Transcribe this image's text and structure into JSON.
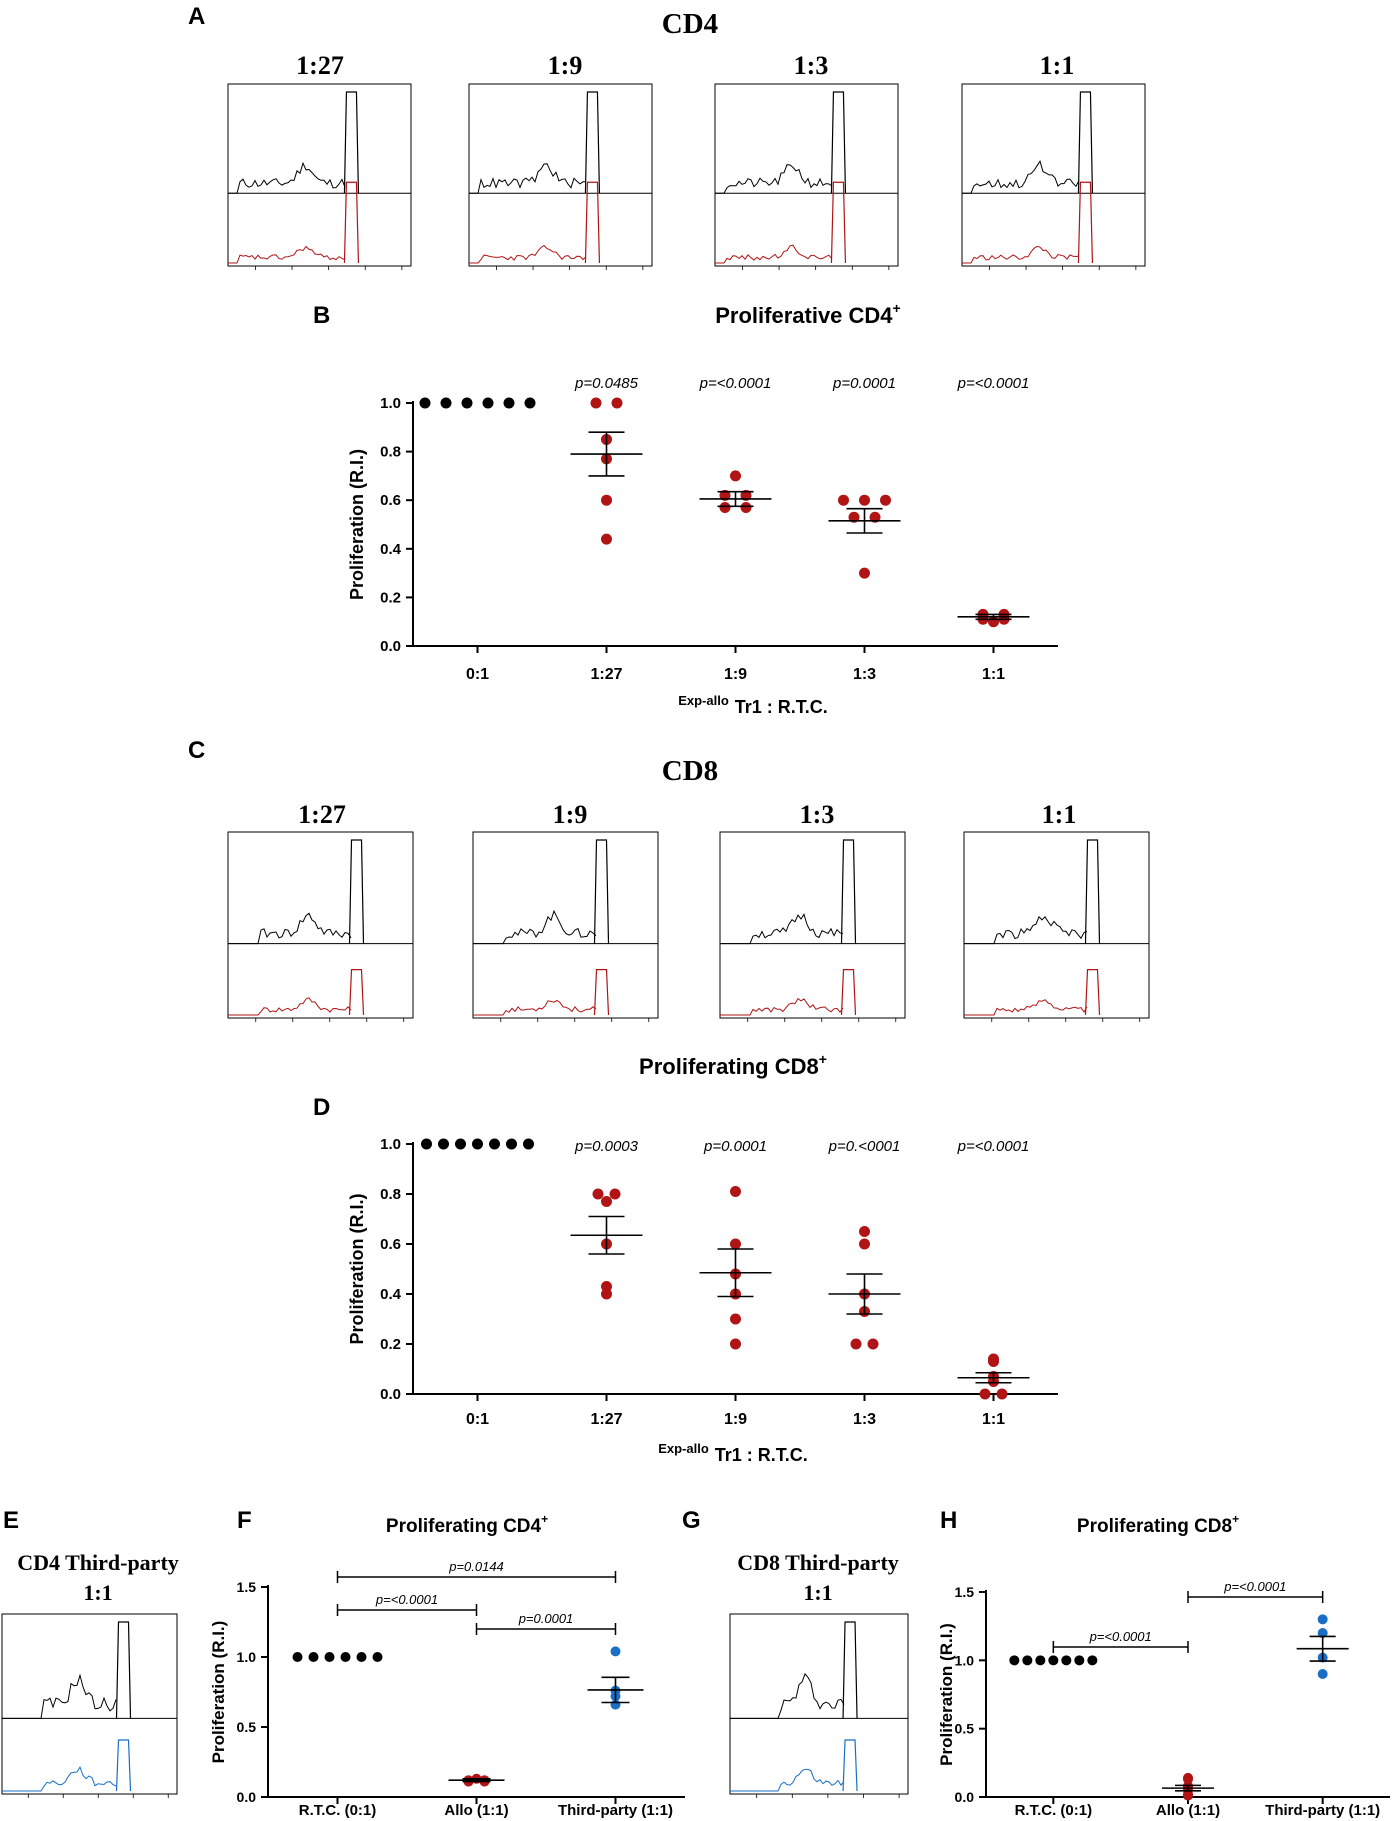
{
  "colors": {
    "control": "#000000",
    "allo": "#b01414",
    "third": "#1a6fc4",
    "trace_black": "#000000"
  },
  "panelA": {
    "letter": "A",
    "title": "CD4",
    "labels": [
      "1:27",
      "1:9",
      "1:3",
      "1:1"
    ]
  },
  "panelB": {
    "letter": "B",
    "title": "Proliferative CD4",
    "title_sup": "+",
    "xlabel_sup": "Exp-allo",
    "xlabel": "Tr1 : R.T.C."
  },
  "panelC": {
    "letter": "C",
    "title": "CD8",
    "labels": [
      "1:27",
      "1:9",
      "1:3",
      "1:1"
    ]
  },
  "panelD": {
    "letter": "D",
    "title": "Proliferating CD8",
    "title_sup": "+",
    "xlabel_sup": "Exp-allo",
    "xlabel": "Tr1 : R.T.C."
  },
  "panelE": {
    "letter": "E",
    "title_line1": "CD4 Third-party",
    "title_line2": "1:1"
  },
  "panelF": {
    "letter": "F",
    "title": "Proliferating CD4",
    "title_sup": "+"
  },
  "panelG": {
    "letter": "G",
    "title_line1": "CD8 Third-party",
    "title_line2": "1:1"
  },
  "panelH": {
    "letter": "H",
    "title": "Proliferating CD8",
    "title_sup": "+"
  },
  "chart_data": [
    {
      "id": "B",
      "type": "scatter",
      "title": "Proliferative CD4+",
      "ylabel": "Proliferation (R.I.)",
      "xlabel": "Exp-allo Tr1 : R.T.C.",
      "ylim": [
        0,
        1.0
      ],
      "yticks": [
        0.0,
        0.2,
        0.4,
        0.6,
        0.8,
        1.0
      ],
      "ytick_labels": [
        "0.0",
        "0.2",
        "0.4",
        "0.6",
        "0.8",
        "1.0"
      ],
      "categories": [
        "0:1",
        "1:27",
        "1:9",
        "1:3",
        "1:1"
      ],
      "pvalues": [
        "",
        "p=0.0485",
        "p=<0.0001",
        "p=0.0001",
        "p=<0.0001"
      ],
      "groups": [
        {
          "name": "0:1",
          "color": "control",
          "mean": null,
          "sem": null,
          "points": [
            1.0,
            1.0,
            1.0,
            1.0,
            1.0,
            1.0
          ]
        },
        {
          "name": "1:27",
          "color": "allo",
          "mean": 0.79,
          "sem": 0.09,
          "points": [
            1.0,
            1.0,
            0.85,
            0.77,
            0.6,
            0.44
          ]
        },
        {
          "name": "1:9",
          "color": "allo",
          "mean": 0.605,
          "sem": 0.03,
          "points": [
            0.7,
            0.62,
            0.62,
            0.57,
            0.57
          ]
        },
        {
          "name": "1:3",
          "color": "allo",
          "mean": 0.515,
          "sem": 0.05,
          "points": [
            0.6,
            0.6,
            0.6,
            0.53,
            0.53,
            0.3
          ]
        },
        {
          "name": "1:1",
          "color": "allo",
          "mean": 0.12,
          "sem": 0.01,
          "points": [
            0.13,
            0.13,
            0.11,
            0.11,
            0.1
          ]
        }
      ]
    },
    {
      "id": "D",
      "type": "scatter",
      "title": "Proliferating CD8+",
      "ylabel": "Proliferation (R.I.)",
      "xlabel": "Exp-allo Tr1 : R.T.C.",
      "ylim": [
        0,
        1.0
      ],
      "yticks": [
        0.0,
        0.2,
        0.4,
        0.6,
        0.8,
        1.0
      ],
      "ytick_labels": [
        "0.0",
        "0.2",
        "0.4",
        "0.6",
        "0.8",
        "1.0"
      ],
      "categories": [
        "0:1",
        "1:27",
        "1:9",
        "1:3",
        "1:1"
      ],
      "pvalues": [
        "",
        "p=0.0003",
        "p=0.0001",
        "p=0.<0001",
        "p=<0.0001"
      ],
      "groups": [
        {
          "name": "0:1",
          "color": "control",
          "mean": null,
          "sem": null,
          "points": [
            1.0,
            1.0,
            1.0,
            1.0,
            1.0,
            1.0,
            1.0
          ]
        },
        {
          "name": "1:27",
          "color": "allo",
          "mean": 0.635,
          "sem": 0.075,
          "points": [
            0.8,
            0.8,
            0.77,
            0.6,
            0.43,
            0.4
          ]
        },
        {
          "name": "1:9",
          "color": "allo",
          "mean": 0.485,
          "sem": 0.095,
          "points": [
            0.81,
            0.6,
            0.48,
            0.4,
            0.3,
            0.2
          ]
        },
        {
          "name": "1:3",
          "color": "allo",
          "mean": 0.4,
          "sem": 0.08,
          "points": [
            0.65,
            0.6,
            0.4,
            0.33,
            0.2,
            0.2
          ]
        },
        {
          "name": "1:1",
          "color": "allo",
          "mean": 0.065,
          "sem": 0.02,
          "points": [
            0.14,
            0.13,
            0.07,
            0.05,
            0.0,
            0.0
          ]
        }
      ]
    },
    {
      "id": "F",
      "type": "scatter",
      "title": "Proliferating CD4+",
      "ylabel": "Proliferation (R.I.)",
      "xlabel": "",
      "ylim": [
        0,
        1.5
      ],
      "yticks": [
        0.0,
        0.5,
        1.0,
        1.5
      ],
      "ytick_labels": [
        "0.0",
        "0.5",
        "1.0",
        "1.5"
      ],
      "categories": [
        "R.T.C. (0:1)",
        "Allo (1:1)",
        "Third-party (1:1)"
      ],
      "groups": [
        {
          "name": "R.T.C. (0:1)",
          "color": "control",
          "mean": null,
          "sem": null,
          "points": [
            1.0,
            1.0,
            1.0,
            1.0,
            1.0,
            1.0
          ]
        },
        {
          "name": "Allo (1:1)",
          "color": "allo",
          "mean": 0.12,
          "sem": 0.01,
          "points": [
            0.13,
            0.12,
            0.12,
            0.11,
            0.11
          ]
        },
        {
          "name": "Third-party (1:1)",
          "color": "third",
          "mean": 0.765,
          "sem": 0.09,
          "points": [
            1.04,
            0.76,
            0.72,
            0.66
          ]
        }
      ],
      "comparisons": [
        {
          "from": 0,
          "to": 2,
          "label": "p=0.0144"
        },
        {
          "from": 0,
          "to": 1,
          "label": "p=<0.0001"
        },
        {
          "from": 1,
          "to": 2,
          "label": "p=0.0001"
        }
      ]
    },
    {
      "id": "H",
      "type": "scatter",
      "title": "Proliferating CD8+",
      "ylabel": "Proliferation (R.I.)",
      "xlabel": "",
      "ylim": [
        0,
        1.5
      ],
      "yticks": [
        0.0,
        0.5,
        1.0,
        1.5
      ],
      "ytick_labels": [
        "0.0",
        "0.5",
        "1.0",
        "1.5"
      ],
      "categories": [
        "R.T.C. (0:1)",
        "Allo (1:1)",
        "Third-party (1:1)"
      ],
      "groups": [
        {
          "name": "R.T.C. (0:1)",
          "color": "control",
          "mean": null,
          "sem": null,
          "points": [
            1.0,
            1.0,
            1.0,
            1.0,
            1.0,
            1.0,
            1.0
          ]
        },
        {
          "name": "Allo (1:1)",
          "color": "allo",
          "mean": 0.065,
          "sem": 0.02,
          "points": [
            0.14,
            0.13,
            0.08,
            0.06,
            0.02,
            0.01
          ]
        },
        {
          "name": "Third-party (1:1)",
          "color": "third",
          "mean": 1.085,
          "sem": 0.09,
          "points": [
            1.3,
            1.2,
            1.02,
            0.9
          ]
        }
      ],
      "comparisons": [
        {
          "from": 0,
          "to": 1,
          "label": "p=<0.0001"
        },
        {
          "from": 1,
          "to": 2,
          "label": "p=<0.0001"
        }
      ]
    }
  ]
}
